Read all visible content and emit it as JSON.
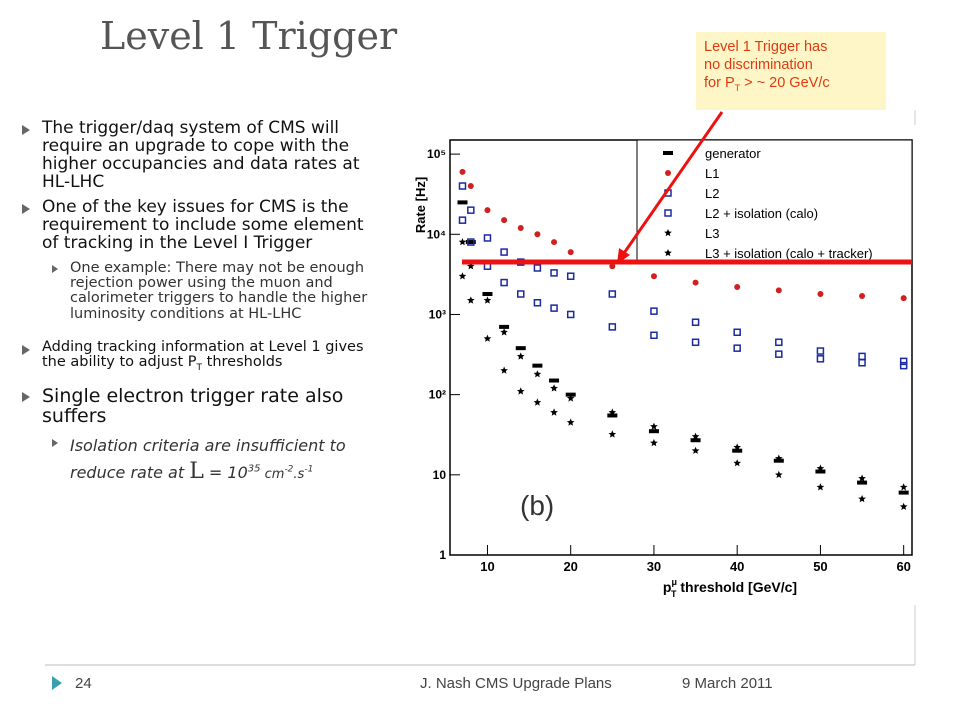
{
  "title": "Level 1 Trigger",
  "callout": {
    "line1": "Level 1 Trigger has",
    "line2": "no discrimination",
    "line3": "for P",
    "line3_sub": "T",
    "line3_rest": " > ~ 20 GeV/c"
  },
  "bullets": {
    "b0": "The trigger/daq system of CMS will require an upgrade to cope with the higher occupancies and data rates at HL-LHC",
    "b1": "One of the key issues for CMS is the requirement to include some element of tracking in the Level I Trigger",
    "b1_sub": "One example: There may not be enough rejection power using the muon and calorimeter triggers to handle the higher luminosity conditions at HL-LHC",
    "b2": "Adding tracking information at Level 1 gives the ability to adjust P",
    "b2_sub": "T",
    "b2_rest": " thresholds",
    "b3": "Single electron trigger rate also suffers",
    "b3_sub": {
      "a": "Isolation criteria are insufficient to reduce rate at ",
      "b": "L",
      "c": " = 10",
      "d": "35",
      "e": " cm",
      "f": "-2",
      "g": ".s",
      "h": "-1"
    }
  },
  "footer": {
    "page": "24",
    "author": "J. Nash CMS Upgrade Plans",
    "date": "9 March 2011"
  },
  "chart_data": {
    "type": "scatter",
    "ylabel": "Rate [Hz]",
    "xlabel": {
      "main": "p",
      "sup": "μ",
      "sub": "T",
      "rest": " threshold [GeV/c]"
    },
    "panel_label": "(b)",
    "ylog": true,
    "xlim": [
      5.5,
      61
    ],
    "ylim": [
      1,
      150000
    ],
    "xticks": [
      10,
      20,
      30,
      40,
      50,
      60
    ],
    "yticks": [
      1,
      10,
      {
        "value": 100,
        "label": "10²"
      },
      {
        "value": 1000,
        "label": "10³"
      },
      {
        "value": 10000,
        "label": "10⁴"
      },
      {
        "value": 100000,
        "label": "10⁵"
      }
    ],
    "x": [
      7,
      8,
      10,
      12,
      14,
      16,
      18,
      20,
      25,
      30,
      35,
      40,
      45,
      50,
      55,
      60
    ],
    "series": [
      {
        "name": "generator",
        "color": "#000000",
        "marker": "step",
        "values": [
          25000,
          8000,
          1800,
          700,
          380,
          230,
          150,
          100,
          55,
          35,
          27,
          20,
          15,
          11,
          8,
          6
        ]
      },
      {
        "name": "L1",
        "color": "#d02020",
        "marker": "circle",
        "values": [
          60000,
          40000,
          20000,
          15000,
          12000,
          10000,
          8000,
          6000,
          4000,
          3000,
          2500,
          2200,
          2000,
          1800,
          1700,
          1600
        ]
      },
      {
        "name": "L2",
        "color": "#1a2aa0",
        "marker": "square",
        "values": [
          40000,
          20000,
          9000,
          6000,
          4500,
          3800,
          3300,
          3000,
          1800,
          1100,
          800,
          600,
          450,
          350,
          300,
          260
        ]
      },
      {
        "name": "L2 + isolation (calo)",
        "color": "#1a2aa0",
        "marker": "square",
        "values": [
          15000,
          8000,
          4000,
          2500,
          1800,
          1400,
          1200,
          1000,
          700,
          550,
          450,
          380,
          320,
          280,
          250,
          230
        ]
      },
      {
        "name": "L3",
        "color": "#000000",
        "marker": "star",
        "values": [
          8000,
          4000,
          1500,
          600,
          300,
          180,
          120,
          90,
          60,
          40,
          30,
          22,
          16,
          12,
          9,
          7
        ]
      },
      {
        "name": "L3 + isolation (calo + tracker)",
        "color": "#000000",
        "marker": "star",
        "values": [
          3000,
          1500,
          500,
          200,
          110,
          80,
          60,
          45,
          32,
          25,
          20,
          14,
          10,
          7,
          5,
          4
        ]
      }
    ]
  }
}
